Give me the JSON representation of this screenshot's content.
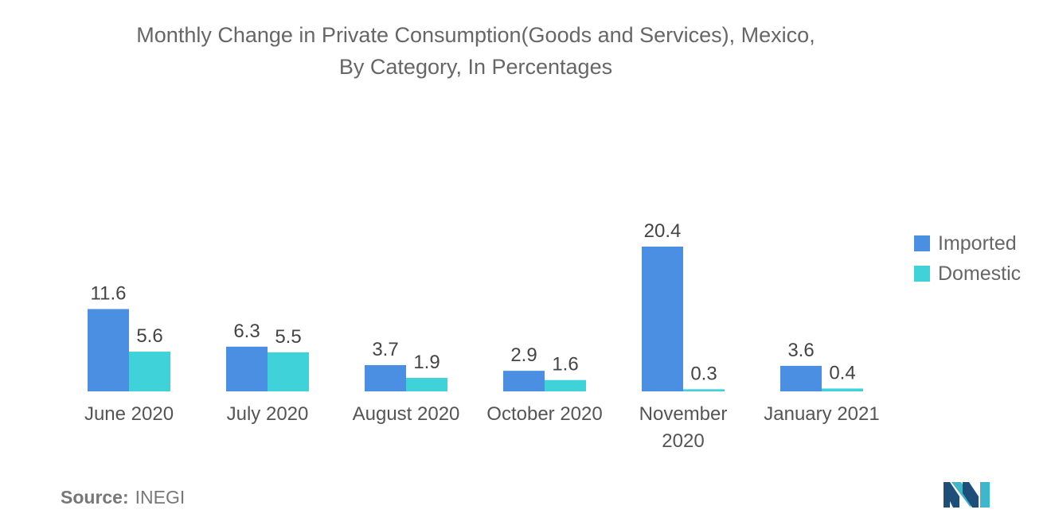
{
  "title_lines": [
    "Monthly Change in Private Consumption(Goods and Services), Mexico,",
    "By Category, In Percentages"
  ],
  "source": {
    "label": "Source:",
    "value": "INEGI"
  },
  "colors": {
    "imported": "#4a8fe2",
    "domestic": "#3fd3d9"
  },
  "logo_icon": "mordor-intelligence-logo",
  "chart_data": {
    "type": "bar",
    "title": "Monthly Change in Private Consumption(Goods and Services), Mexico, By Category, In Percentages",
    "categories": [
      [
        "June 2020"
      ],
      [
        "July 2020"
      ],
      [
        "August 2020"
      ],
      [
        "October 2020"
      ],
      [
        "November",
        "2020"
      ],
      [
        "January 2021"
      ]
    ],
    "series": [
      {
        "name": "Imported",
        "values": [
          11.6,
          6.3,
          3.7,
          2.9,
          20.4,
          3.6
        ]
      },
      {
        "name": "Domestic",
        "values": [
          5.6,
          5.5,
          1.9,
          1.6,
          0.3,
          0.4
        ]
      }
    ],
    "ylim": [
      0,
      20.4
    ],
    "grid": false,
    "legend_position": "right",
    "data_labels": true,
    "xlabel": "",
    "ylabel": ""
  }
}
